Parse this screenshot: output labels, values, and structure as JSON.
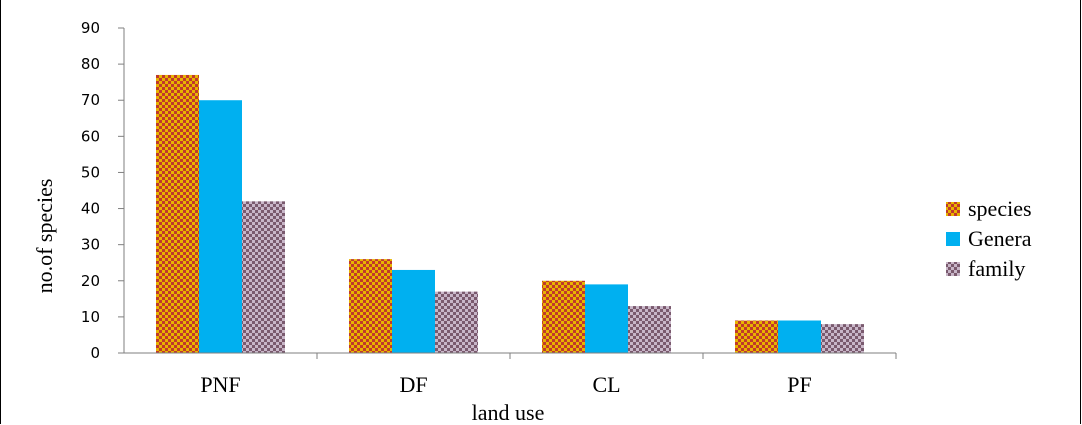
{
  "chart_data": {
    "type": "bar",
    "categories": [
      "PNF",
      "DF",
      "CL",
      "PF"
    ],
    "series": [
      {
        "name": "species",
        "values": [
          77,
          26,
          20,
          9
        ],
        "pattern": "checker",
        "colors": [
          "#c0392b",
          "#e8b400"
        ]
      },
      {
        "name": "Genera",
        "values": [
          70,
          23,
          19,
          9
        ],
        "pattern": "solid",
        "colors": [
          "#00b0f0"
        ]
      },
      {
        "name": "family",
        "values": [
          42,
          17,
          13,
          8
        ],
        "pattern": "checker",
        "colors": [
          "#7a5a6e",
          "#c8b6c8"
        ]
      }
    ],
    "xlabel": "land use",
    "ylabel": "no.of species",
    "ylim": [
      0,
      90
    ],
    "yticks": [
      0,
      10,
      20,
      30,
      40,
      50,
      60,
      70,
      80,
      90
    ],
    "grid": false,
    "legend_position": "right"
  }
}
